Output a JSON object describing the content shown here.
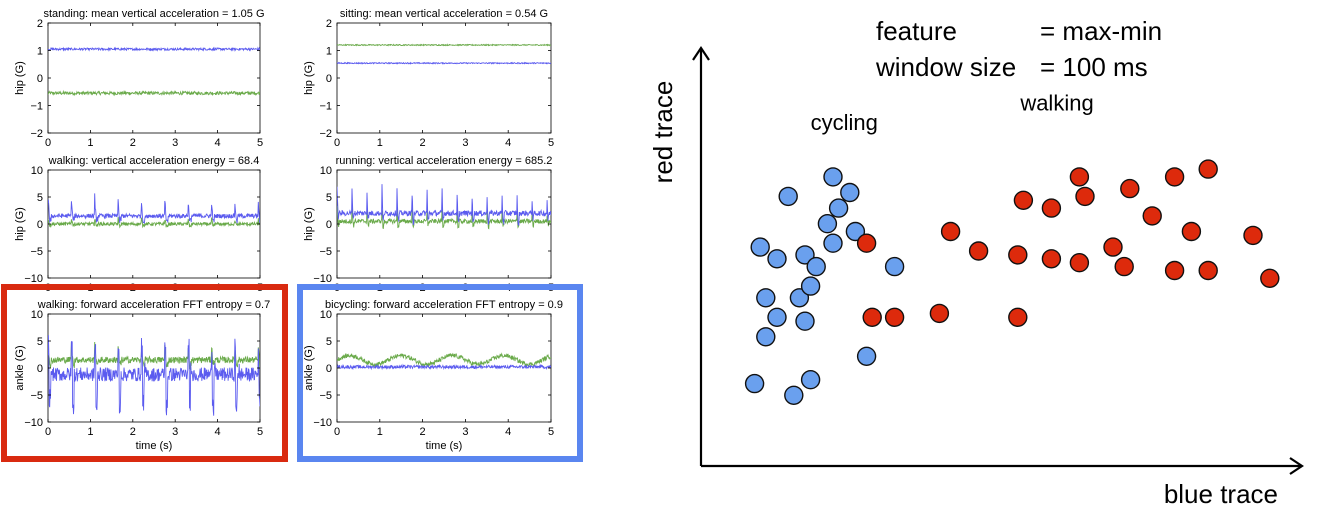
{
  "colors": {
    "blue_trace": "#5b5bef",
    "green_trace": "#6aaa4a",
    "highlight_red": "#d92a10",
    "highlight_blue": "#5a86f0",
    "dot_blue": "#6aa0ee",
    "dot_red": "#dd2a0c"
  },
  "chart_data": [
    {
      "type": "line",
      "title": "standing: mean vertical acceleration = 1.05 G",
      "ylabel": "hip (G)",
      "xlabel": "",
      "xlim": [
        0,
        5
      ],
      "ylim": [
        -2,
        2
      ],
      "xticks": [
        "0",
        "1",
        "2",
        "3",
        "4",
        "5"
      ],
      "yticks": [
        "2",
        "1",
        "0",
        "−1",
        "−2"
      ],
      "series": [
        {
          "color": "blue",
          "level": 1.05,
          "noise": 0.04,
          "kind": "flat"
        },
        {
          "color": "green",
          "level": -0.55,
          "noise": 0.06,
          "kind": "flat"
        }
      ],
      "highlight": ""
    },
    {
      "type": "line",
      "title": "sitting: mean vertical acceleration = 0.54 G",
      "ylabel": "hip (G)",
      "xlabel": "",
      "xlim": [
        0,
        5
      ],
      "ylim": [
        -2,
        2
      ],
      "xticks": [
        "0",
        "1",
        "2",
        "3",
        "4",
        "5"
      ],
      "yticks": [
        "2",
        "1",
        "0",
        "−1",
        "−2"
      ],
      "series": [
        {
          "color": "blue",
          "level": 0.54,
          "noise": 0.02,
          "kind": "flat"
        },
        {
          "color": "green",
          "level": 1.2,
          "noise": 0.02,
          "kind": "flat"
        }
      ],
      "highlight": ""
    },
    {
      "type": "line",
      "title": "walking: vertical acceleration energy = 68.4",
      "ylabel": "hip (G)",
      "xlabel": "",
      "xlim": [
        0,
        5
      ],
      "ylim": [
        -10,
        10
      ],
      "xticks": [
        "0",
        "1",
        "2",
        "3",
        "4",
        "5"
      ],
      "yticks": [
        "10",
        "5",
        "0",
        "−5",
        "−10"
      ],
      "series": [
        {
          "color": "blue",
          "level": 1.5,
          "noise": 0.4,
          "kind": "spikes",
          "period": 0.55,
          "amp": 3.2
        },
        {
          "color": "green",
          "level": 0.0,
          "noise": 0.3,
          "kind": "spikes",
          "period": 0.55,
          "amp": 1.0
        }
      ],
      "highlight": ""
    },
    {
      "type": "line",
      "title": "running: vertical acceleration energy = 685.2",
      "ylabel": "hip (G)",
      "xlabel": "",
      "xlim": [
        0,
        5
      ],
      "ylim": [
        -10,
        10
      ],
      "xticks": [
        "0",
        "1",
        "2",
        "3",
        "4",
        "5"
      ],
      "yticks": [
        "10",
        "5",
        "0",
        "−5",
        "−10"
      ],
      "series": [
        {
          "color": "blue",
          "level": 2.0,
          "noise": 0.5,
          "kind": "spikes",
          "period": 0.35,
          "amp": 5.0
        },
        {
          "color": "green",
          "level": 0.5,
          "noise": 0.4,
          "kind": "spikes",
          "period": 0.35,
          "amp": 3.0
        }
      ],
      "highlight": ""
    },
    {
      "type": "line",
      "title": "walking: forward acceleration FFT entropy = 0.7",
      "ylabel": "ankle (G)",
      "xlabel": "time (s)",
      "xlim": [
        0,
        5
      ],
      "ylim": [
        -10,
        10
      ],
      "xticks": [
        "0",
        "1",
        "2",
        "3",
        "4",
        "5"
      ],
      "yticks": [
        "10",
        "5",
        "0",
        "−5",
        "−10"
      ],
      "series": [
        {
          "color": "blue",
          "level": 0.0,
          "noise": 1.3,
          "kind": "bipolar",
          "period": 0.55,
          "amp": 6.0
        },
        {
          "color": "green",
          "level": 1.5,
          "noise": 0.6,
          "kind": "spikes",
          "period": 0.55,
          "amp": 3.5
        }
      ],
      "highlight": "red"
    },
    {
      "type": "line",
      "title": "bicycling: forward acceleration FFT entropy = 0.9",
      "ylabel": "ankle (G)",
      "xlabel": "time (s)",
      "xlim": [
        0,
        5
      ],
      "ylim": [
        -10,
        10
      ],
      "xticks": [
        "0",
        "1",
        "2",
        "3",
        "4",
        "5"
      ],
      "yticks": [
        "10",
        "5",
        "0",
        "−5",
        "−10"
      ],
      "series": [
        {
          "color": "blue",
          "level": 0.2,
          "noise": 0.3,
          "kind": "flat"
        },
        {
          "color": "green",
          "level": 1.5,
          "noise": 0.4,
          "kind": "wave",
          "period": 1.2,
          "amp": 0.8
        }
      ],
      "highlight": "blue"
    },
    {
      "type": "scatter",
      "title": "",
      "xlabel": "blue trace",
      "ylabel": "red trace",
      "annotation_lines": [
        {
          "key": "feature",
          "value": "= max-min"
        },
        {
          "key": "window size",
          "value": "= 100 ms"
        }
      ],
      "xlim": [
        0,
        100
      ],
      "ylim": [
        0,
        100
      ],
      "series": [
        {
          "name": "cycling",
          "color": "blue",
          "label_pos": [
            22,
            81
          ],
          "points": [
            [
              6,
              16
            ],
            [
              13,
              13
            ],
            [
              8,
              28
            ],
            [
              16,
              17
            ],
            [
              10,
              33
            ],
            [
              15,
              32
            ],
            [
              14,
              38
            ],
            [
              8,
              38
            ],
            [
              10,
              48
            ],
            [
              7,
              51
            ],
            [
              15,
              49
            ],
            [
              19,
              57
            ],
            [
              24,
              55
            ],
            [
              21,
              61
            ],
            [
              23,
              65
            ],
            [
              20,
              69
            ],
            [
              12,
              64
            ],
            [
              20,
              52
            ],
            [
              17,
              46
            ],
            [
              16,
              41
            ],
            [
              26,
              23
            ],
            [
              31,
              46
            ]
          ]
        },
        {
          "name": "walking",
          "color": "red",
          "label_pos": [
            60,
            86
          ],
          "points": [
            [
              31,
              33
            ],
            [
              27,
              33
            ],
            [
              39,
              34
            ],
            [
              41,
              55
            ],
            [
              46,
              50
            ],
            [
              53,
              49
            ],
            [
              54,
              63
            ],
            [
              59,
              61
            ],
            [
              59,
              48
            ],
            [
              64,
              47
            ],
            [
              65,
              64
            ],
            [
              64,
              69
            ],
            [
              70,
              51
            ],
            [
              73,
              66
            ],
            [
              72,
              46
            ],
            [
              77,
              59
            ],
            [
              81,
              45
            ],
            [
              81,
              69
            ],
            [
              84,
              55
            ],
            [
              87,
              45
            ],
            [
              87,
              71
            ],
            [
              95,
              54
            ],
            [
              98,
              43
            ],
            [
              53,
              33
            ],
            [
              26,
              52
            ]
          ]
        }
      ]
    }
  ]
}
